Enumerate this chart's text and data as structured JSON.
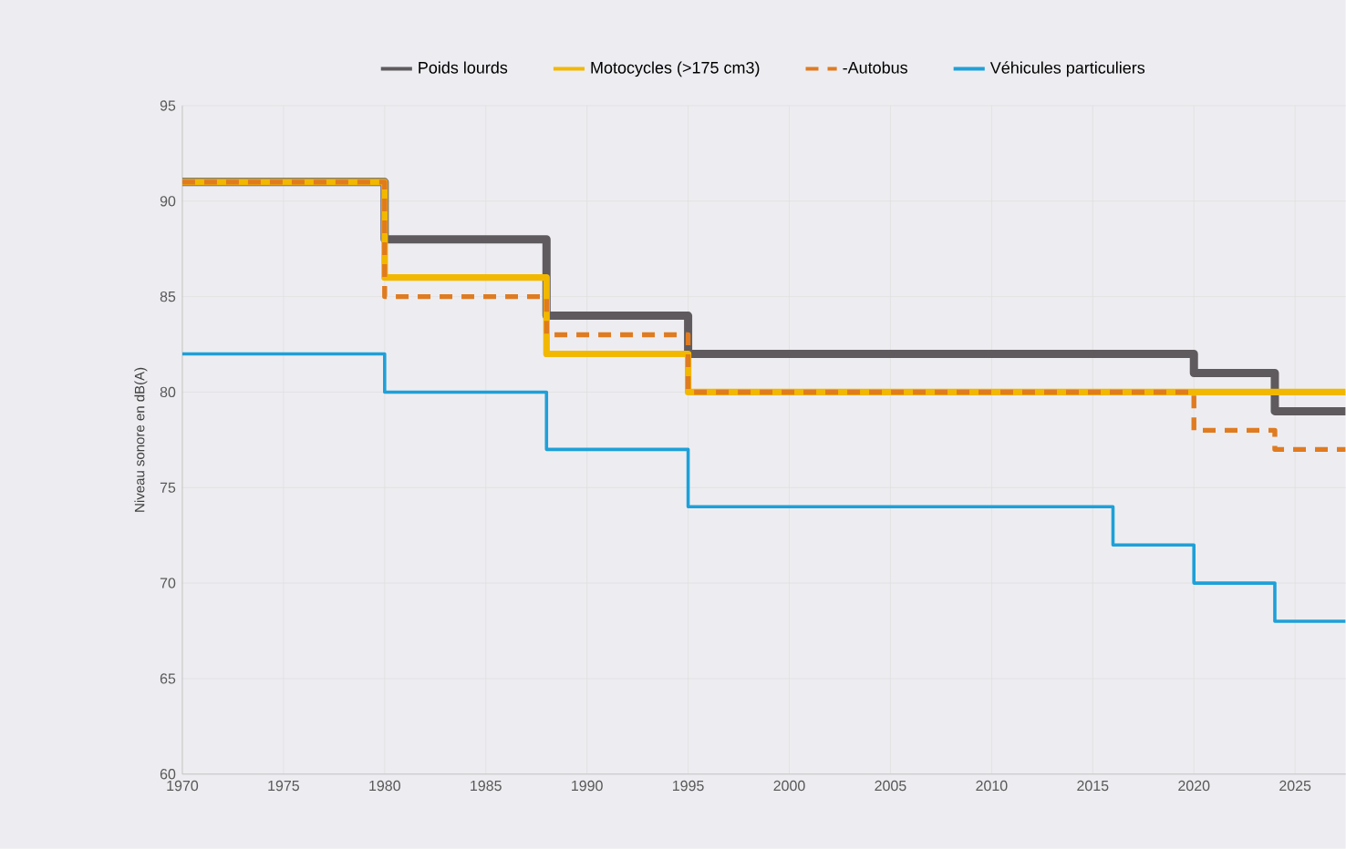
{
  "chart_data": {
    "type": "step",
    "ylabel": "Niveau sonore en dB(A)",
    "xlim": [
      1970,
      2027.5
    ],
    "ylim": [
      60,
      95
    ],
    "xticks": [
      1970,
      1975,
      1980,
      1985,
      1990,
      1995,
      2000,
      2005,
      2010,
      2015,
      2020,
      2025
    ],
    "yticks": [
      60,
      65,
      70,
      75,
      80,
      85,
      90,
      95
    ],
    "grid": true,
    "legend": "top",
    "series": [
      {
        "name": "Poids lourds",
        "color": "#5f5a5e",
        "line_style": "solid",
        "x": [
          1970,
          1980,
          1988,
          1995,
          2020,
          2024,
          2027.5
        ],
        "values": [
          91,
          88,
          84,
          82,
          81,
          79,
          79
        ]
      },
      {
        "name": "Motocycles (>175 cm3)",
        "color": "#f2b800",
        "line_style": "solid",
        "x": [
          1970,
          1980,
          1988,
          1995,
          2027.5
        ],
        "values": [
          91,
          86,
          82,
          80,
          80
        ]
      },
      {
        "name": "-Autobus",
        "color": "#e07b20",
        "line_style": "dashed",
        "x": [
          1970,
          1980,
          1988,
          1995,
          2020,
          2024,
          2027.5
        ],
        "values": [
          91,
          85,
          83,
          80,
          78,
          77,
          77
        ]
      },
      {
        "name": "Véhicules particuliers",
        "color": "#1ea0d8",
        "line_style": "solid",
        "x": [
          1970,
          1980,
          1988,
          1995,
          2016,
          2020,
          2024,
          2027.5
        ],
        "values": [
          82,
          80,
          77,
          74,
          72,
          70,
          68,
          68
        ]
      }
    ]
  }
}
